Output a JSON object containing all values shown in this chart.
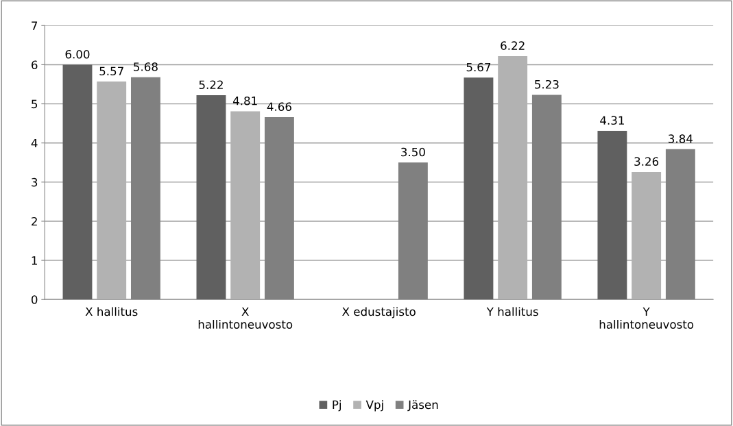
{
  "chart_data": {
    "type": "bar",
    "categories": [
      "X hallitus",
      "X hallintoneuvosto",
      "X edustajisto",
      "Y hallitus",
      "Y hallintoneuvosto"
    ],
    "series": [
      {
        "name": "Pj",
        "color": "#606060",
        "values": [
          6.0,
          5.22,
          null,
          5.67,
          4.31
        ],
        "value_labels": [
          "6.00",
          "5.22",
          null,
          "5.67",
          "4.31"
        ]
      },
      {
        "name": "Vpj",
        "color": "#b2b2b2",
        "values": [
          5.57,
          4.81,
          null,
          6.22,
          3.26
        ],
        "value_labels": [
          "5.57",
          "4.81",
          null,
          "6.22",
          "3.26"
        ]
      },
      {
        "name": "Jäsen",
        "color": "#808080",
        "values": [
          5.68,
          4.66,
          3.5,
          5.23,
          3.84
        ],
        "value_labels": [
          "5.68",
          "4.66",
          "3.50",
          "5.23",
          "3.84"
        ]
      }
    ],
    "ylim": [
      0,
      7
    ],
    "yticks": [
      0,
      1,
      2,
      3,
      4,
      5,
      6,
      7
    ],
    "grid": "y",
    "legend": "bottom"
  }
}
